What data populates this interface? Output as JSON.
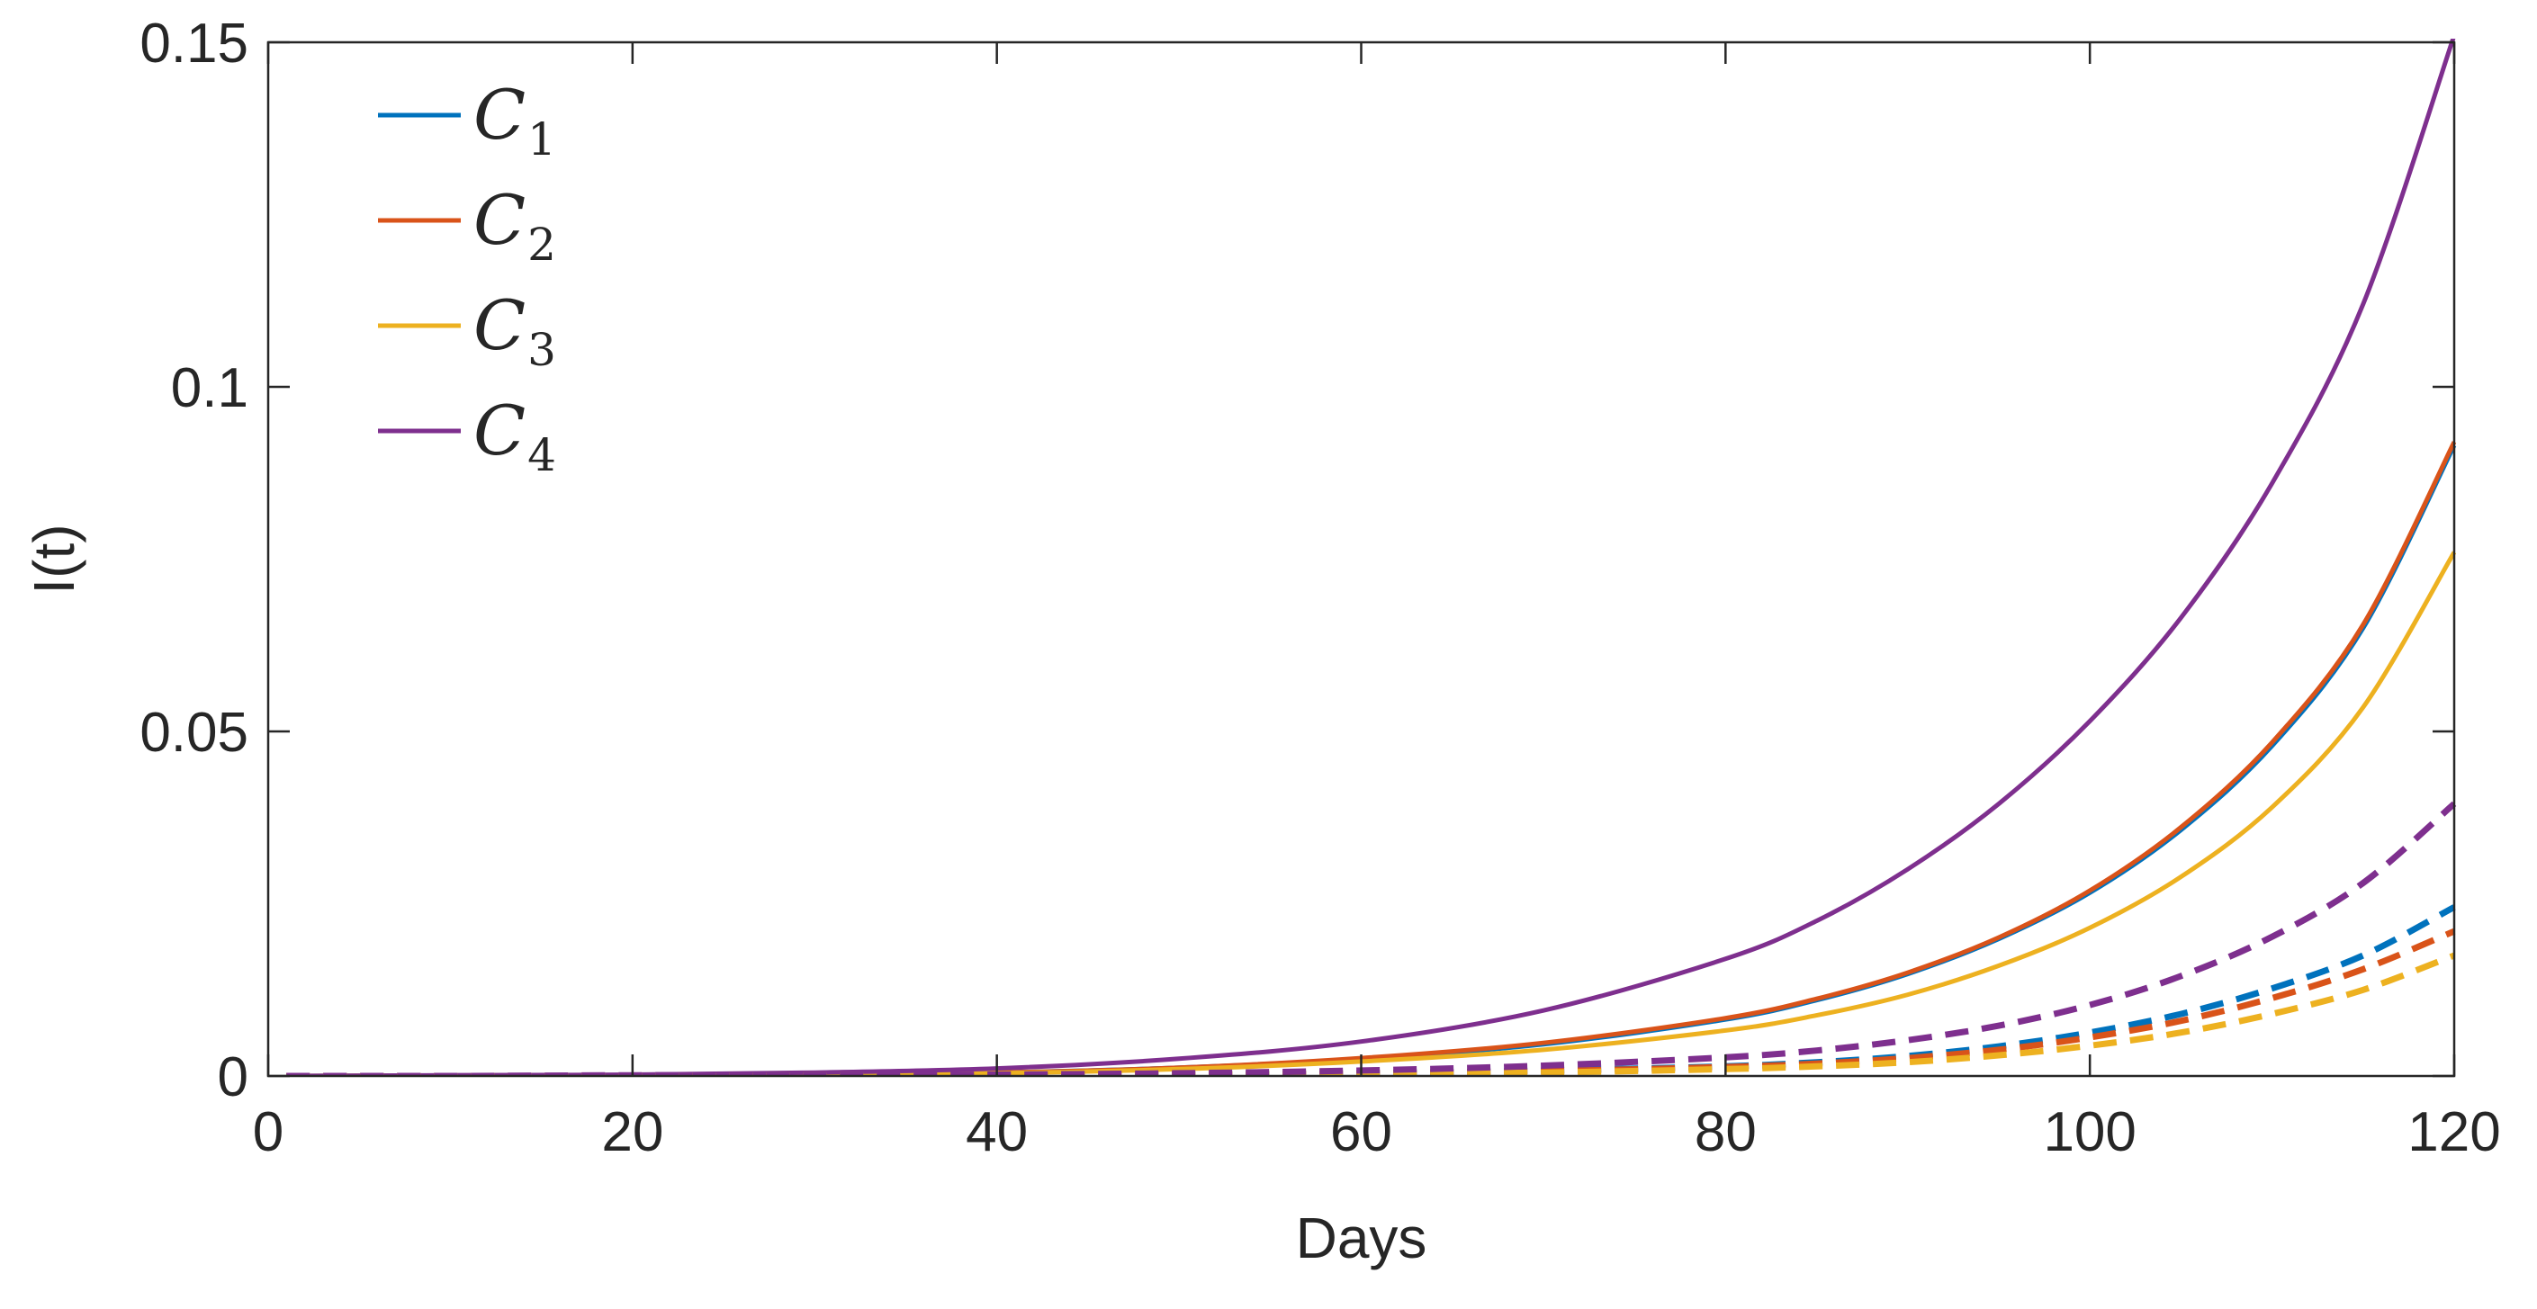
{
  "chart_data": {
    "type": "line",
    "xlabel": "Days",
    "ylabel": "I(t)",
    "xlim": [
      0,
      120
    ],
    "ylim": [
      0,
      0.15
    ],
    "x_ticks": [
      0,
      20,
      40,
      60,
      80,
      100,
      120
    ],
    "y_ticks": [
      0,
      0.05,
      0.1,
      0.15
    ],
    "x_tick_labels": [
      "0",
      "20",
      "40",
      "60",
      "80",
      "100",
      "120"
    ],
    "y_tick_labels": [
      "0",
      "0.05",
      "0.1",
      "0.15"
    ],
    "grid": false,
    "legend_placement": "top-left",
    "x": [
      1,
      10,
      20,
      30,
      40,
      50,
      60,
      70,
      80,
      85,
      90,
      95,
      100,
      105,
      110,
      115,
      120
    ],
    "series": [
      {
        "name": "C",
        "subscript": "1",
        "color": "#0072BD",
        "style": "solid",
        "values": [
          0.0,
          5e-05,
          0.0001,
          0.0002,
          0.0005,
          0.0012,
          0.0025,
          0.0046,
          0.0082,
          0.011,
          0.0148,
          0.0199,
          0.0266,
          0.0357,
          0.0479,
          0.065,
          0.0915
        ]
      },
      {
        "name": "C",
        "subscript": "2",
        "color": "#D95319",
        "style": "solid",
        "values": [
          0.0,
          5e-05,
          0.0001,
          0.0002,
          0.0005,
          0.0012,
          0.0026,
          0.0048,
          0.0084,
          0.0112,
          0.015,
          0.0201,
          0.0269,
          0.0361,
          0.0484,
          0.0655,
          0.092
        ]
      },
      {
        "name": "C",
        "subscript": "3",
        "color": "#EDB120",
        "style": "solid",
        "values": [
          0.0,
          4e-05,
          0.0001,
          0.0002,
          0.0004,
          0.001,
          0.0021,
          0.0038,
          0.0066,
          0.0088,
          0.0118,
          0.016,
          0.0215,
          0.0289,
          0.039,
          0.0535,
          0.076
        ]
      },
      {
        "name": "C",
        "subscript": "4",
        "color": "#7E2F8E",
        "style": "solid",
        "values": [
          0.0,
          0.0001,
          0.0002,
          0.0005,
          0.0011,
          0.0025,
          0.005,
          0.0095,
          0.017,
          0.0225,
          0.03,
          0.0395,
          0.0515,
          0.0665,
          0.086,
          0.112,
          0.151
        ]
      },
      {
        "color": "#0072BD",
        "style": "dashed",
        "values": [
          0.0,
          0.0,
          0.0,
          0.0001,
          0.0001,
          0.0002,
          0.0004,
          0.0008,
          0.0014,
          0.002,
          0.0029,
          0.0043,
          0.0063,
          0.009,
          0.0127,
          0.0175,
          0.0245
        ]
      },
      {
        "color": "#D95319",
        "style": "dashed",
        "values": [
          0.0,
          0.0,
          0.0,
          0.0001,
          0.0001,
          0.0002,
          0.0004,
          0.0007,
          0.0013,
          0.0018,
          0.0026,
          0.0038,
          0.0056,
          0.008,
          0.0113,
          0.0155,
          0.021
        ]
      },
      {
        "color": "#EDB120",
        "style": "dashed",
        "values": [
          0.0,
          0.0,
          0.0,
          0.0,
          0.0001,
          0.0001,
          0.0003,
          0.0005,
          0.001,
          0.0014,
          0.002,
          0.003,
          0.0044,
          0.0063,
          0.009,
          0.0125,
          0.0175
        ]
      },
      {
        "color": "#7E2F8E",
        "style": "dashed",
        "values": [
          0.0,
          0.0,
          0.0001,
          0.0001,
          0.0002,
          0.0004,
          0.0008,
          0.0015,
          0.0027,
          0.0037,
          0.0052,
          0.0073,
          0.0103,
          0.0145,
          0.0202,
          0.028,
          0.0395
        ]
      }
    ]
  }
}
